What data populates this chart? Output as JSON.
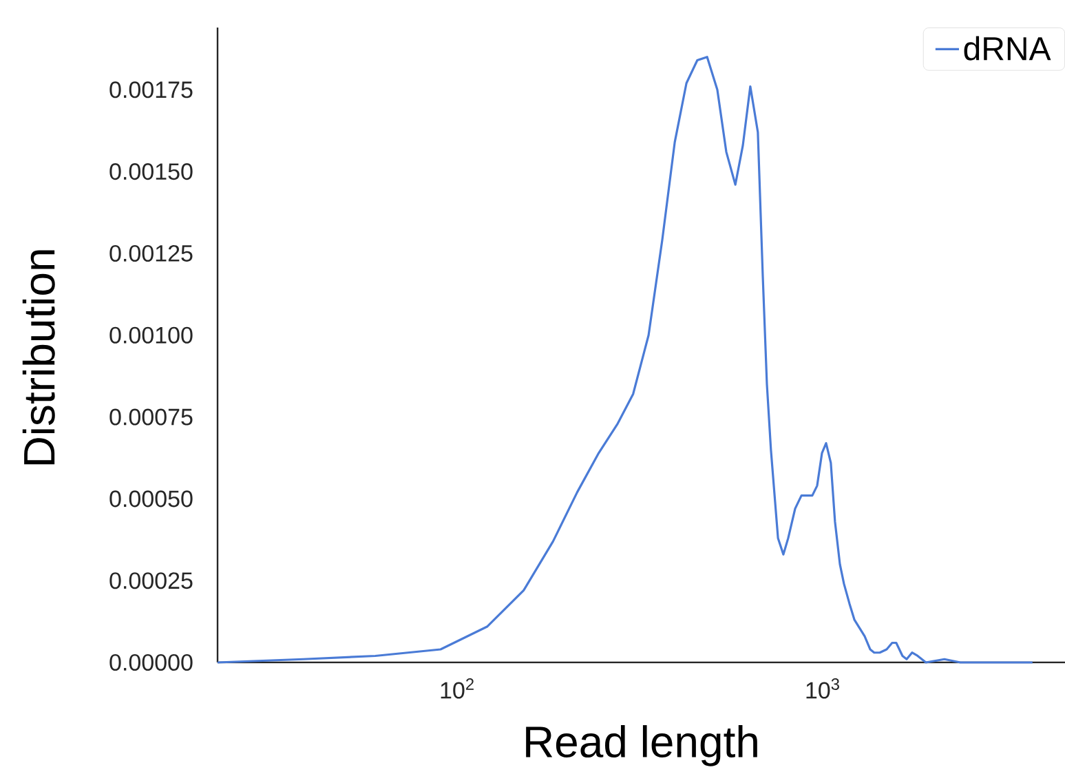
{
  "chart_data": {
    "type": "line",
    "xlabel": "Read length",
    "ylabel": "Distribution",
    "log": "x",
    "xlim": [
      22.1,
      4605
    ],
    "xticks": [
      {
        "value": 100,
        "label": "10$^{2}$"
      },
      {
        "value": 1000,
        "label": "10$^{3}$"
      }
    ],
    "ylim": [
      0,
      0.00194
    ],
    "yticks": [
      {
        "value": 0,
        "label": "0.00000"
      },
      {
        "value": 0.00025,
        "label": "0.00025"
      },
      {
        "value": 0.0005,
        "label": "0.00050"
      },
      {
        "value": 0.00075,
        "label": "0.00075"
      },
      {
        "value": 0.001,
        "label": "0.00100"
      },
      {
        "value": 0.00125,
        "label": "0.00125"
      },
      {
        "value": 0.0015,
        "label": "0.00150"
      },
      {
        "value": 0.00175,
        "label": "0.00175"
      }
    ],
    "grid": false,
    "legend": "top right",
    "x": [
      22.1,
      37.9,
      59.7,
      90.1,
      121,
      152,
      183,
      213,
      244,
      275,
      303,
      334,
      364,
      394,
      424,
      454,
      483,
      515,
      545,
      577,
      605,
      634,
      665,
      686,
      704,
      722,
      755,
      781,
      805,
      841,
      875,
      906,
      937,
      966,
      996,
      1022,
      1053,
      1081,
      1115,
      1144,
      1184,
      1222,
      1270,
      1303,
      1349,
      1384,
      1433,
      1497,
      1550,
      1590,
      1654,
      1698,
      1757,
      1820,
      1917,
      2154,
      2381,
      2893,
      3752
    ],
    "series": [
      {
        "name": "dRNA",
        "color": "#4a7bd6",
        "values": [
          0,
          1e-05,
          2e-05,
          4e-05,
          0.00011,
          0.00022,
          0.00037,
          0.00052,
          0.00064,
          0.00073,
          0.00082,
          0.001,
          0.00129,
          0.00159,
          0.00177,
          0.00184,
          0.00185,
          0.00175,
          0.00156,
          0.00146,
          0.00158,
          0.00176,
          0.00162,
          0.00118,
          0.00085,
          0.00065,
          0.00038,
          0.00033,
          0.00038,
          0.00047,
          0.00051,
          0.00051,
          0.00051,
          0.00054,
          0.00064,
          0.00067,
          0.00061,
          0.00043,
          0.0003,
          0.00024,
          0.00018,
          0.00013,
          0.0001,
          8e-05,
          4e-05,
          3e-05,
          3e-05,
          4e-05,
          6e-05,
          6e-05,
          2e-05,
          1e-05,
          3e-05,
          2e-05,
          0,
          1e-05,
          0,
          0,
          0
        ]
      }
    ]
  }
}
